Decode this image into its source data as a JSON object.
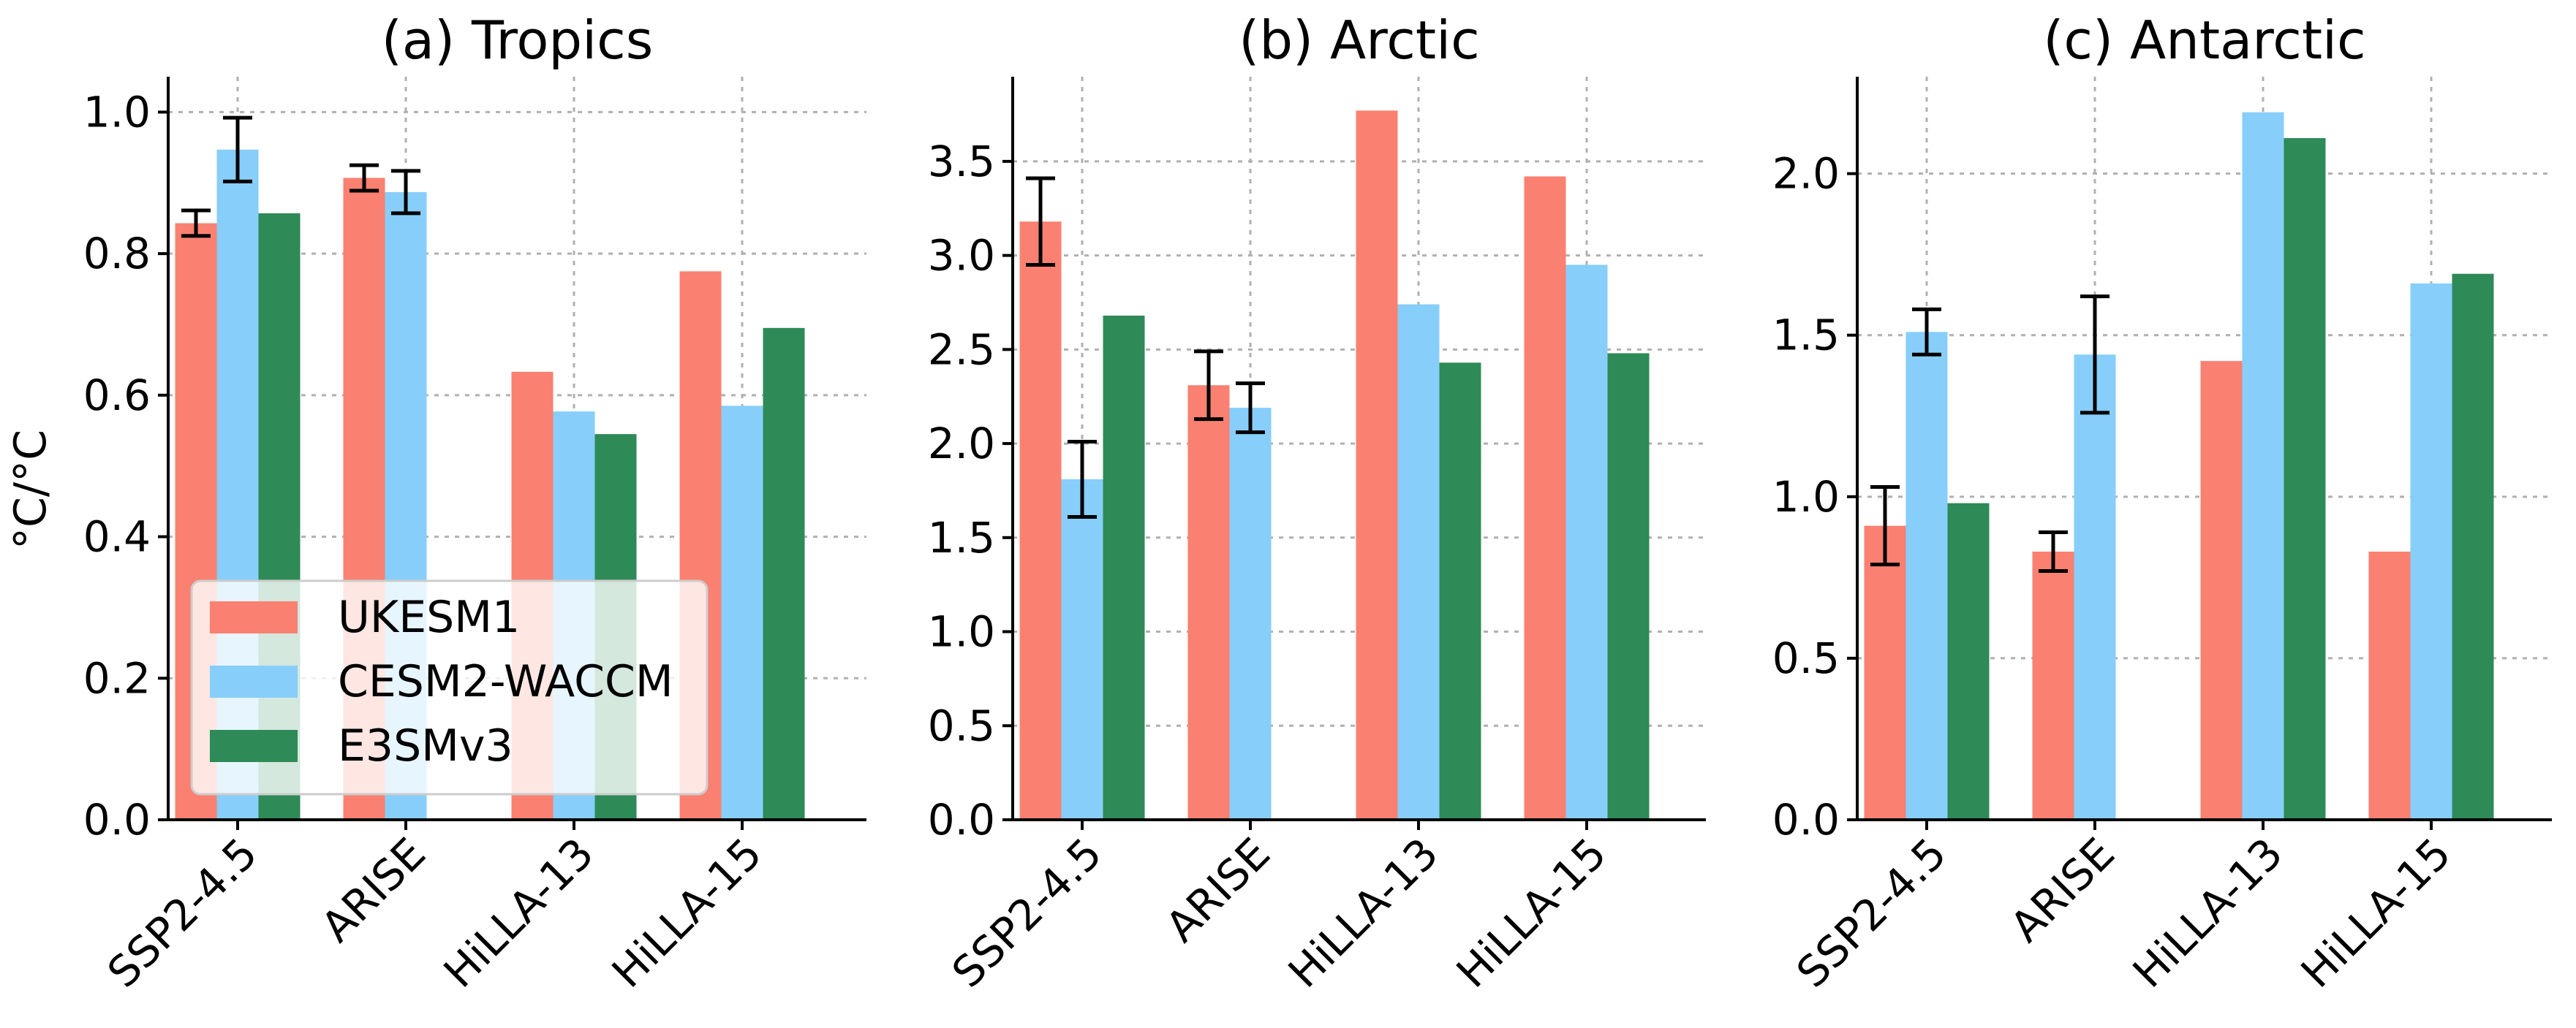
{
  "y_axis_label": "°C/°C",
  "colors": {
    "UKESM1": "#fa8072",
    "CESM2-WACCM": "#87cefa",
    "E3SMv3": "#2e8b57"
  },
  "chart_data": [
    {
      "type": "bar",
      "title": "(a) Tropics",
      "categories": [
        "SSP2-4.5",
        "ARISE",
        "HiLLA-13",
        "HiLLA-15"
      ],
      "ylim": [
        0,
        1.05
      ],
      "yticks": [
        "0.0",
        "0.2",
        "0.4",
        "0.6",
        "0.8",
        "1.0"
      ],
      "grid": true,
      "legend": "lower-left",
      "series": [
        {
          "name": "UKESM1",
          "values": [
            0.843,
            0.907,
            0.633,
            0.775
          ],
          "err": [
            0.018,
            0.018,
            null,
            null
          ]
        },
        {
          "name": "CESM2-WACCM",
          "values": [
            0.947,
            0.887,
            0.577,
            0.585
          ],
          "err": [
            0.045,
            0.03,
            null,
            null
          ]
        },
        {
          "name": "E3SMv3",
          "values": [
            0.857,
            null,
            0.545,
            0.695
          ],
          "err": [
            null,
            null,
            null,
            null
          ]
        }
      ]
    },
    {
      "type": "bar",
      "title": "(b) Arctic",
      "categories": [
        "SSP2-4.5",
        "ARISE",
        "HiLLA-13",
        "HiLLA-15"
      ],
      "ylim": [
        0,
        3.95
      ],
      "yticks": [
        "0.0",
        "0.5",
        "1.0",
        "1.5",
        "2.0",
        "2.5",
        "3.0",
        "3.5"
      ],
      "grid": true,
      "series": [
        {
          "name": "UKESM1",
          "values": [
            3.18,
            2.31,
            3.77,
            3.42
          ],
          "err": [
            0.23,
            0.18,
            null,
            null
          ]
        },
        {
          "name": "CESM2-WACCM",
          "values": [
            1.81,
            2.19,
            2.74,
            2.95
          ],
          "err": [
            0.2,
            0.13,
            null,
            null
          ]
        },
        {
          "name": "E3SMv3",
          "values": [
            2.68,
            null,
            2.43,
            2.48
          ],
          "err": [
            null,
            null,
            null,
            null
          ]
        }
      ]
    },
    {
      "type": "bar",
      "title": "(c) Antarctic",
      "categories": [
        "SSP2-4.5",
        "ARISE",
        "HiLLA-13",
        "HiLLA-15"
      ],
      "ylim": [
        0,
        2.3
      ],
      "yticks": [
        "0.0",
        "0.5",
        "1.0",
        "1.5",
        "2.0"
      ],
      "grid": true,
      "series": [
        {
          "name": "UKESM1",
          "values": [
            0.91,
            0.83,
            1.42,
            0.83
          ],
          "err": [
            0.12,
            0.06,
            null,
            null
          ]
        },
        {
          "name": "CESM2-WACCM",
          "values": [
            1.51,
            1.44,
            2.19,
            1.66
          ],
          "err": [
            0.07,
            0.18,
            null,
            null
          ]
        },
        {
          "name": "E3SMv3",
          "values": [
            0.98,
            null,
            2.11,
            1.69
          ],
          "err": [
            null,
            null,
            null,
            null
          ]
        }
      ]
    }
  ]
}
